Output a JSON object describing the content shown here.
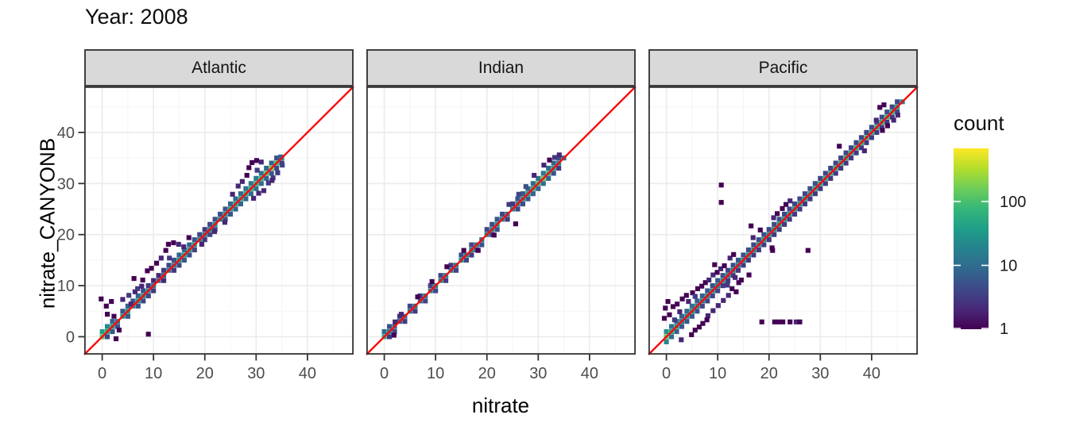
{
  "title": "Year: 2008",
  "facets": [
    "Atlantic",
    "Indian",
    "Pacific"
  ],
  "axes": {
    "x_title": "nitrate",
    "y_title": "nitrate_CANYONB",
    "tick_values": [
      0,
      10,
      20,
      30,
      40
    ],
    "minor_values": [
      5,
      15,
      25,
      35,
      45
    ],
    "domain": [
      -3.5,
      49
    ]
  },
  "legend": {
    "title": "count",
    "ticks": [
      1,
      10,
      100
    ],
    "max": 680,
    "scale": "log10"
  },
  "colors": {
    "line": "#f80b0b",
    "viridis": [
      "#440154",
      "#482878",
      "#3e4989",
      "#31688e",
      "#26828e",
      "#1f9e89",
      "#35b779",
      "#6dcd59",
      "#b4de2c",
      "#fde725"
    ],
    "strip_bg": "#d9d9d9",
    "strip_border": "#404040",
    "panel_border": "#333333",
    "grid_major": "#ebebeb",
    "grid_minor": "#f5f5f5",
    "tick_mark": "#333333",
    "tick_text": "#4d4d4d",
    "legend_text": "#1a1a1a"
  },
  "chart_data": {
    "type": "heatmap",
    "subtype": "bin2d-faceted-scatter-density",
    "x_variable": "nitrate",
    "y_variable": "nitrate_CANYONB",
    "facet_variable": "ocean",
    "reference_line": "y = x",
    "bin_width": 0.95,
    "panels": [
      {
        "name": "Atlantic",
        "t0": 0,
        "core": [
          120,
          60,
          35,
          12,
          30,
          35,
          30,
          40,
          35,
          25,
          15,
          12,
          10,
          15,
          20,
          30,
          45,
          40,
          30,
          20,
          18,
          20,
          25,
          25,
          30,
          40,
          45,
          50,
          55,
          60,
          70,
          80,
          110,
          180,
          90,
          40
        ],
        "upper": [
          40,
          20,
          8,
          0,
          6,
          8,
          6,
          8,
          5,
          3,
          2,
          2,
          3,
          4,
          5,
          8,
          10,
          8,
          6,
          4,
          3,
          4,
          5,
          5,
          6,
          8,
          9,
          10,
          12,
          14,
          15,
          12,
          10,
          8,
          5,
          0
        ],
        "lower": [
          0,
          4,
          6,
          5,
          0,
          6,
          0,
          5,
          4,
          4,
          3,
          0,
          2,
          0,
          3,
          4,
          6,
          5,
          4,
          0,
          3,
          4,
          4,
          0,
          5,
          6,
          8,
          8,
          9,
          10,
          12,
          10,
          8,
          6,
          4,
          3
        ],
        "outliers": [
          [
            9,
            0.5,
            1
          ],
          [
            3.3,
            1.3,
            1
          ],
          [
            2.3,
            4,
            1
          ],
          [
            1,
            4.4,
            1
          ],
          [
            0.8,
            6,
            1
          ],
          [
            -0.2,
            7.4,
            1
          ],
          [
            1.8,
            6.9,
            1
          ],
          [
            4,
            7.3,
            2
          ],
          [
            5.2,
            8.1,
            3
          ],
          [
            6.4,
            8.8,
            2
          ],
          [
            5.6,
            6.4,
            2
          ],
          [
            6.2,
            11.4,
            1
          ],
          [
            7.9,
            11.1,
            1
          ],
          [
            8.8,
            12.9,
            1
          ],
          [
            9.6,
            13.4,
            1
          ],
          [
            10.6,
            14.4,
            1
          ],
          [
            11.5,
            15.4,
            2
          ],
          [
            12.4,
            16.9,
            1
          ],
          [
            12.9,
            18.1,
            1
          ],
          [
            13.9,
            18.4,
            1
          ],
          [
            14.9,
            18.1,
            2
          ],
          [
            15.9,
            17.6,
            2
          ],
          [
            13.1,
            15.4,
            3
          ],
          [
            16.9,
            19.4,
            1
          ],
          [
            26.5,
            29.5,
            2
          ],
          [
            27.3,
            30.4,
            2
          ],
          [
            28.2,
            31.6,
            1
          ],
          [
            28.6,
            33.1,
            1
          ],
          [
            29.2,
            34.1,
            1
          ],
          [
            30.1,
            34.5,
            1
          ],
          [
            31,
            34.2,
            2
          ],
          [
            30.2,
            32.6,
            3
          ],
          [
            25.4,
            27.9,
            2
          ],
          [
            29.5,
            27.1,
            2
          ],
          [
            30.5,
            28.1,
            2
          ],
          [
            31.5,
            28.6,
            2
          ],
          [
            32.4,
            30.1,
            3
          ],
          [
            33.3,
            31.1,
            3
          ],
          [
            34.2,
            32.1,
            3
          ],
          [
            35.1,
            33.6,
            4
          ],
          [
            33.1,
            30.6,
            2
          ],
          [
            34.8,
            35.2,
            8
          ],
          [
            2.7,
            -0.4,
            1
          ],
          [
            19.4,
            18.1,
            2
          ],
          [
            21.9,
            20.6,
            2
          ],
          [
            23.9,
            22.4,
            2
          ],
          [
            6.9,
            9.4,
            3
          ],
          [
            7.7,
            9.9,
            2
          ]
        ]
      },
      {
        "name": "Indian",
        "t0": 0,
        "core": [
          50,
          25,
          10,
          8,
          10,
          12,
          10,
          12,
          15,
          18,
          20,
          22,
          20,
          18,
          20,
          25,
          22,
          20,
          15,
          12,
          18,
          25,
          30,
          20,
          15,
          20,
          25,
          30,
          40,
          60,
          90,
          150,
          80,
          40,
          20,
          10
        ],
        "upper": [
          10,
          5,
          0,
          3,
          0,
          4,
          0,
          3,
          0,
          4,
          0,
          4,
          0,
          3,
          0,
          5,
          0,
          4,
          0,
          0,
          4,
          5,
          6,
          4,
          0,
          3,
          5,
          6,
          8,
          10,
          12,
          14,
          10,
          8,
          5,
          0
        ],
        "lower": [
          0,
          3,
          4,
          0,
          3,
          0,
          3,
          0,
          4,
          0,
          4,
          0,
          3,
          0,
          4,
          0,
          4,
          3,
          4,
          5,
          0,
          4,
          5,
          0,
          3,
          0,
          4,
          5,
          6,
          8,
          8,
          10,
          8,
          5,
          3,
          0
        ],
        "outliers": [
          [
            1.9,
            0.3,
            1
          ],
          [
            2.1,
            2.9,
            2
          ],
          [
            25.6,
            22.1,
            1
          ],
          [
            29.2,
            31.6,
            2
          ],
          [
            31.1,
            33.6,
            2
          ],
          [
            32.2,
            34.6,
            1
          ],
          [
            33.2,
            35.1,
            3
          ],
          [
            34.1,
            35.6,
            2
          ],
          [
            3.3,
            4.4,
            2
          ],
          [
            6.5,
            7.8,
            1
          ],
          [
            9.3,
            10.8,
            1
          ],
          [
            12.2,
            13.7,
            1
          ],
          [
            15.5,
            16.9,
            1
          ],
          [
            18.3,
            16.9,
            1
          ],
          [
            21.4,
            19.9,
            1
          ],
          [
            24.3,
            25.9,
            3
          ],
          [
            26.2,
            27.9,
            4
          ],
          [
            27.6,
            29.4,
            5
          ]
        ]
      },
      {
        "name": "Pacific",
        "t0": 0,
        "core": [
          150,
          60,
          30,
          20,
          25,
          30,
          25,
          20,
          25,
          20,
          18,
          20,
          18,
          15,
          18,
          25,
          30,
          25,
          30,
          35,
          30,
          35,
          40,
          35,
          30,
          35,
          40,
          35,
          40,
          50,
          55,
          60,
          55,
          60,
          50,
          55,
          60,
          65,
          70,
          60,
          55,
          60,
          70,
          80,
          70,
          40,
          20
        ],
        "upper": [
          30,
          12,
          10,
          8,
          10,
          12,
          8,
          8,
          6,
          5,
          6,
          5,
          4,
          5,
          6,
          5,
          5,
          4,
          5,
          5,
          4,
          5,
          5,
          4,
          4,
          4,
          4,
          4,
          5,
          5,
          4,
          4,
          4,
          4,
          4,
          4,
          4,
          4,
          4,
          4,
          4,
          5,
          5,
          5,
          4,
          4,
          0
        ],
        "lower": [
          20,
          10,
          8,
          6,
          6,
          6,
          5,
          4,
          4,
          4,
          4,
          3,
          3,
          3,
          3,
          3,
          3,
          3,
          3,
          3,
          3,
          3,
          3,
          3,
          3,
          3,
          3,
          3,
          3,
          3,
          3,
          3,
          3,
          3,
          3,
          3,
          3,
          3,
          3,
          3,
          3,
          3,
          3,
          3,
          3,
          4,
          0
        ],
        "outliers": [
          [
            10.7,
            29.7,
            1
          ],
          [
            10.7,
            26.3,
            1
          ],
          [
            33.7,
            37.3,
            1
          ],
          [
            18.6,
            2.9,
            1
          ],
          [
            21.1,
            2.9,
            1
          ],
          [
            21.9,
            2.9,
            1
          ],
          [
            22.7,
            2.9,
            1
          ],
          [
            24.1,
            2.9,
            1
          ],
          [
            25.3,
            2.9,
            2
          ],
          [
            26,
            2.9,
            1
          ],
          [
            13.6,
            8.8,
            1
          ],
          [
            12.8,
            9.4,
            1
          ],
          [
            16.1,
            12.1,
            1
          ],
          [
            14.6,
            11.1,
            1
          ],
          [
            -0.4,
            3.6,
            1
          ],
          [
            0.6,
            4.3,
            1
          ],
          [
            -0.2,
            5.6,
            1
          ],
          [
            1.3,
            5.9,
            1
          ],
          [
            2.1,
            6.4,
            1
          ],
          [
            0.3,
            6.9,
            1
          ],
          [
            3.1,
            7.4,
            1
          ],
          [
            2.6,
            4.9,
            2
          ],
          [
            1.6,
            3.3,
            3
          ],
          [
            3.9,
            8.1,
            1
          ],
          [
            5.1,
            8.6,
            1
          ],
          [
            4.3,
            6.9,
            2
          ],
          [
            6.1,
            9.4,
            1
          ],
          [
            6.9,
            9.9,
            1
          ],
          [
            5.6,
            7.9,
            3
          ],
          [
            7.6,
            10.6,
            1
          ],
          [
            8.3,
            11.1,
            2
          ],
          [
            9.1,
            12.1,
            2
          ],
          [
            9.9,
            12.6,
            1
          ],
          [
            10.6,
            13.3,
            2
          ],
          [
            11.3,
            13.9,
            1
          ],
          [
            5.6,
            1.3,
            1
          ],
          [
            6.4,
            1.9,
            1
          ],
          [
            7.1,
            2.6,
            1
          ],
          [
            4.9,
            0.4,
            1
          ],
          [
            8.1,
            4.1,
            2
          ],
          [
            9.1,
            5.1,
            2
          ],
          [
            10.1,
            6.1,
            2
          ],
          [
            11.1,
            7.1,
            2
          ],
          [
            12.1,
            8.1,
            2
          ],
          [
            7.9,
            3.3,
            1
          ],
          [
            14.1,
            10.6,
            1
          ],
          [
            20.6,
            17.4,
            1
          ],
          [
            20.7,
            16.9,
            1
          ],
          [
            27.6,
            16.9,
            1
          ],
          [
            21.6,
            24.1,
            1
          ],
          [
            22.6,
            25.1,
            1
          ],
          [
            23.3,
            25.9,
            1
          ],
          [
            20.9,
            23.3,
            2
          ],
          [
            24.1,
            26.6,
            2
          ],
          [
            16.5,
            21.7,
            1
          ],
          [
            18.3,
            20.9,
            1
          ],
          [
            16.9,
            19.4,
            2
          ],
          [
            40.9,
            42.4,
            2
          ],
          [
            41.6,
            44.9,
            1
          ],
          [
            42.4,
            45.4,
            1
          ],
          [
            44.3,
            42.4,
            2
          ],
          [
            45.1,
            43.4,
            2
          ],
          [
            38.6,
            36.4,
            2
          ],
          [
            42.1,
            40.4,
            1
          ],
          [
            43.1,
            41.3,
            1
          ],
          [
            2.9,
            -0.6,
            2
          ],
          [
            12.4,
            15.4,
            2
          ],
          [
            13.1,
            16.1,
            1
          ],
          [
            9.4,
            14.1,
            1
          ],
          [
            11.9,
            10.1,
            3
          ],
          [
            13.4,
            11.6,
            2
          ]
        ]
      }
    ]
  }
}
